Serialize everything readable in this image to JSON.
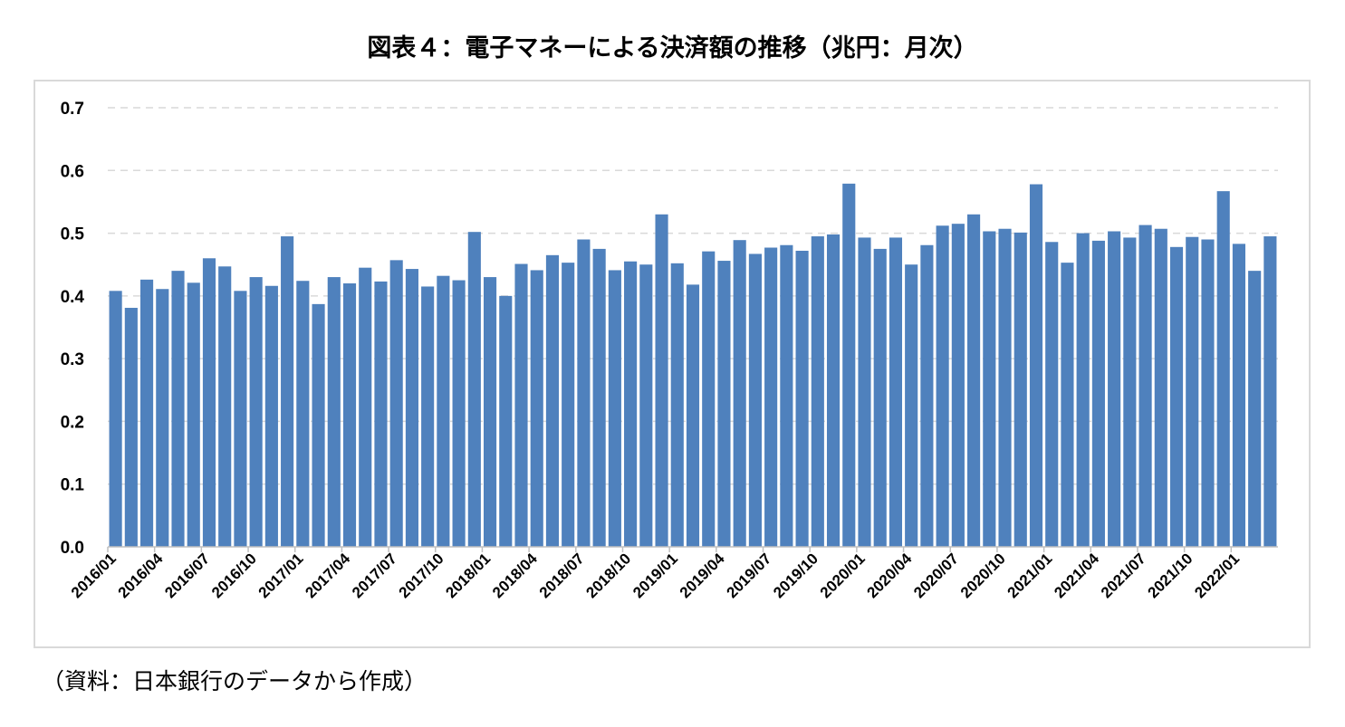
{
  "chart_data": {
    "type": "bar",
    "title": "図表４：電子マネーによる決済額の推移（兆円：月次）",
    "source_note": "（資料：日本銀行のデータから作成）",
    "xlabel": "",
    "ylabel": "",
    "ylim": [
      0,
      0.7
    ],
    "yticks": [
      "0.0",
      "0.1",
      "0.2",
      "0.3",
      "0.4",
      "0.5",
      "0.6",
      "0.7"
    ],
    "grid": true,
    "legend": "none",
    "color": "#4f81bd",
    "categories": [
      "2016/01",
      "2016/02",
      "2016/03",
      "2016/04",
      "2016/05",
      "2016/06",
      "2016/07",
      "2016/08",
      "2016/09",
      "2016/10",
      "2016/11",
      "2016/12",
      "2017/01",
      "2017/02",
      "2017/03",
      "2017/04",
      "2017/05",
      "2017/06",
      "2017/07",
      "2017/08",
      "2017/09",
      "2017/10",
      "2017/11",
      "2017/12",
      "2018/01",
      "2018/02",
      "2018/03",
      "2018/04",
      "2018/05",
      "2018/06",
      "2018/07",
      "2018/08",
      "2018/09",
      "2018/10",
      "2018/11",
      "2018/12",
      "2019/01",
      "2019/02",
      "2019/03",
      "2019/04",
      "2019/05",
      "2019/06",
      "2019/07",
      "2019/08",
      "2019/09",
      "2019/10",
      "2019/11",
      "2019/12",
      "2020/01",
      "2020/02",
      "2020/03",
      "2020/04",
      "2020/05",
      "2020/06",
      "2020/07",
      "2020/08",
      "2020/09",
      "2020/10",
      "2020/11",
      "2020/12",
      "2021/01",
      "2021/02",
      "2021/03",
      "2021/04",
      "2021/05",
      "2021/06",
      "2021/07",
      "2021/08",
      "2021/09",
      "2021/10",
      "2021/11",
      "2021/12",
      "2022/01",
      "2022/02",
      "2022/03"
    ],
    "tick_labels": [
      "2016/01",
      "2016/04",
      "2016/07",
      "2016/10",
      "2017/01",
      "2017/04",
      "2017/07",
      "2017/10",
      "2018/01",
      "2018/04",
      "2018/07",
      "2018/10",
      "2019/01",
      "2019/04",
      "2019/07",
      "2019/10",
      "2020/01",
      "2020/04",
      "2020/07",
      "2020/10",
      "2021/01",
      "2021/04",
      "2021/07",
      "2021/10",
      "2022/01"
    ],
    "values": [
      0.408,
      0.381,
      0.426,
      0.411,
      0.44,
      0.421,
      0.46,
      0.447,
      0.408,
      0.43,
      0.416,
      0.495,
      0.424,
      0.387,
      0.43,
      0.42,
      0.445,
      0.423,
      0.457,
      0.443,
      0.415,
      0.432,
      0.425,
      0.502,
      0.43,
      0.4,
      0.451,
      0.441,
      0.465,
      0.453,
      0.49,
      0.475,
      0.441,
      0.455,
      0.45,
      0.53,
      0.452,
      0.418,
      0.471,
      0.456,
      0.489,
      0.467,
      0.477,
      0.481,
      0.472,
      0.495,
      0.498,
      0.579,
      0.493,
      0.475,
      0.493,
      0.45,
      0.481,
      0.512,
      0.515,
      0.53,
      0.503,
      0.507,
      0.501,
      0.578,
      0.486,
      0.453,
      0.5,
      0.488,
      0.503,
      0.493,
      0.513,
      0.507,
      0.478,
      0.494,
      0.49,
      0.567,
      0.483,
      0.44,
      0.495
    ]
  }
}
